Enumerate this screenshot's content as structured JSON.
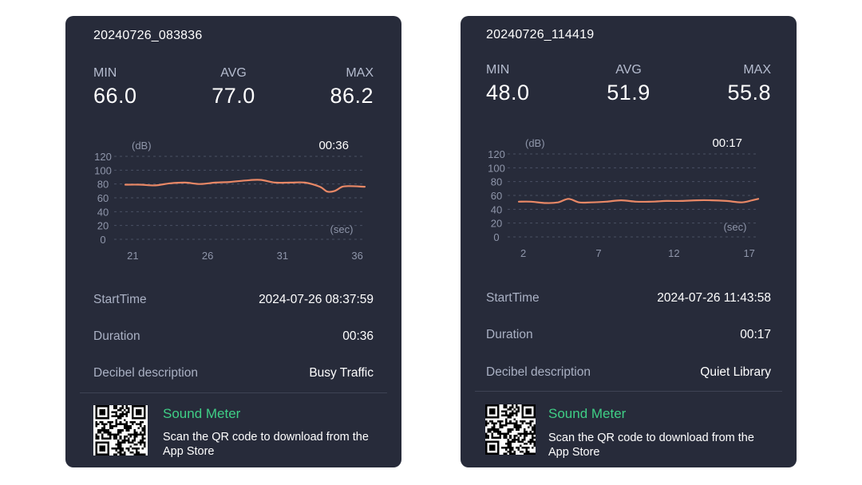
{
  "colors": {
    "card_background": "#272b3a",
    "line": "#e98866",
    "label": "#b5bccf",
    "axis": "#8f96aa",
    "gridline": "#4a5063",
    "brand": "#3fcf86"
  },
  "records": [
    {
      "title": "20240726_083836",
      "stats": {
        "min_label": "MIN",
        "min": "66.0",
        "avg_label": "AVG",
        "avg": "77.0",
        "max_label": "MAX",
        "max": "86.2"
      },
      "info": {
        "start_label": "StartTime",
        "start_value": "2024-07-26 08:37:59",
        "duration_label": "Duration",
        "duration_value": "00:36",
        "desc_label": "Decibel description",
        "desc_value": "Busy Traffic"
      },
      "footer": {
        "brand": "Sound Meter",
        "download": "Scan the QR code to download from the App Store",
        "qr_icon": "qr-code-icon"
      }
    },
    {
      "title": "20240726_114419",
      "stats": {
        "min_label": "MIN",
        "min": "48.0",
        "avg_label": "AVG",
        "avg": "51.9",
        "max_label": "MAX",
        "max": "55.8"
      },
      "info": {
        "start_label": "StartTime",
        "start_value": "2024-07-26 11:43:58",
        "duration_label": "Duration",
        "duration_value": "00:17",
        "desc_label": "Decibel description",
        "desc_value": "Quiet Library"
      },
      "footer": {
        "brand": "Sound Meter",
        "download": "Scan the QR code to download from the App Store",
        "qr_icon": "qr-code-icon"
      }
    }
  ],
  "chart_data": [
    {
      "type": "line",
      "ylabel": "(dB)",
      "xlabel": "(sec)",
      "time_label": "00:36",
      "y_ticks": [
        0,
        20,
        40,
        60,
        80,
        100,
        120
      ],
      "x_ticks": [
        21,
        26,
        31,
        36
      ],
      "xlim": [
        20.5,
        36.5
      ],
      "ylim": [
        0,
        120
      ],
      "grid": true,
      "series": [
        {
          "x": [
            20.5,
            21.5,
            22.5,
            23.5,
            24.5,
            25.5,
            26.5,
            27.5,
            28.5,
            29.5,
            30.5,
            31.5,
            32.5,
            33.5,
            34.0,
            34.5,
            35.0,
            35.5,
            36.5
          ],
          "values": [
            79,
            79,
            78,
            81,
            82,
            80,
            82,
            83,
            85,
            86,
            82,
            82,
            82,
            76,
            69,
            70,
            76,
            77,
            76
          ]
        }
      ]
    },
    {
      "type": "line",
      "ylabel": "(dB)",
      "xlabel": "(sec)",
      "time_label": "00:17",
      "y_ticks": [
        0,
        20,
        40,
        60,
        80,
        100,
        120
      ],
      "x_ticks": [
        2,
        7,
        12,
        17
      ],
      "xlim": [
        1.7,
        17.6
      ],
      "ylim": [
        0,
        120
      ],
      "grid": true,
      "series": [
        {
          "x": [
            1.7,
            2.5,
            3.5,
            4.3,
            5.0,
            5.7,
            6.5,
            7.5,
            8.5,
            9.5,
            10.5,
            11.5,
            12.5,
            13.5,
            14.5,
            15.5,
            16.5,
            17.2,
            17.6
          ],
          "values": [
            51,
            51,
            49,
            50,
            55,
            50,
            50,
            51,
            53,
            51,
            51,
            52,
            52,
            53,
            53,
            52,
            50,
            53,
            55
          ]
        }
      ]
    }
  ]
}
